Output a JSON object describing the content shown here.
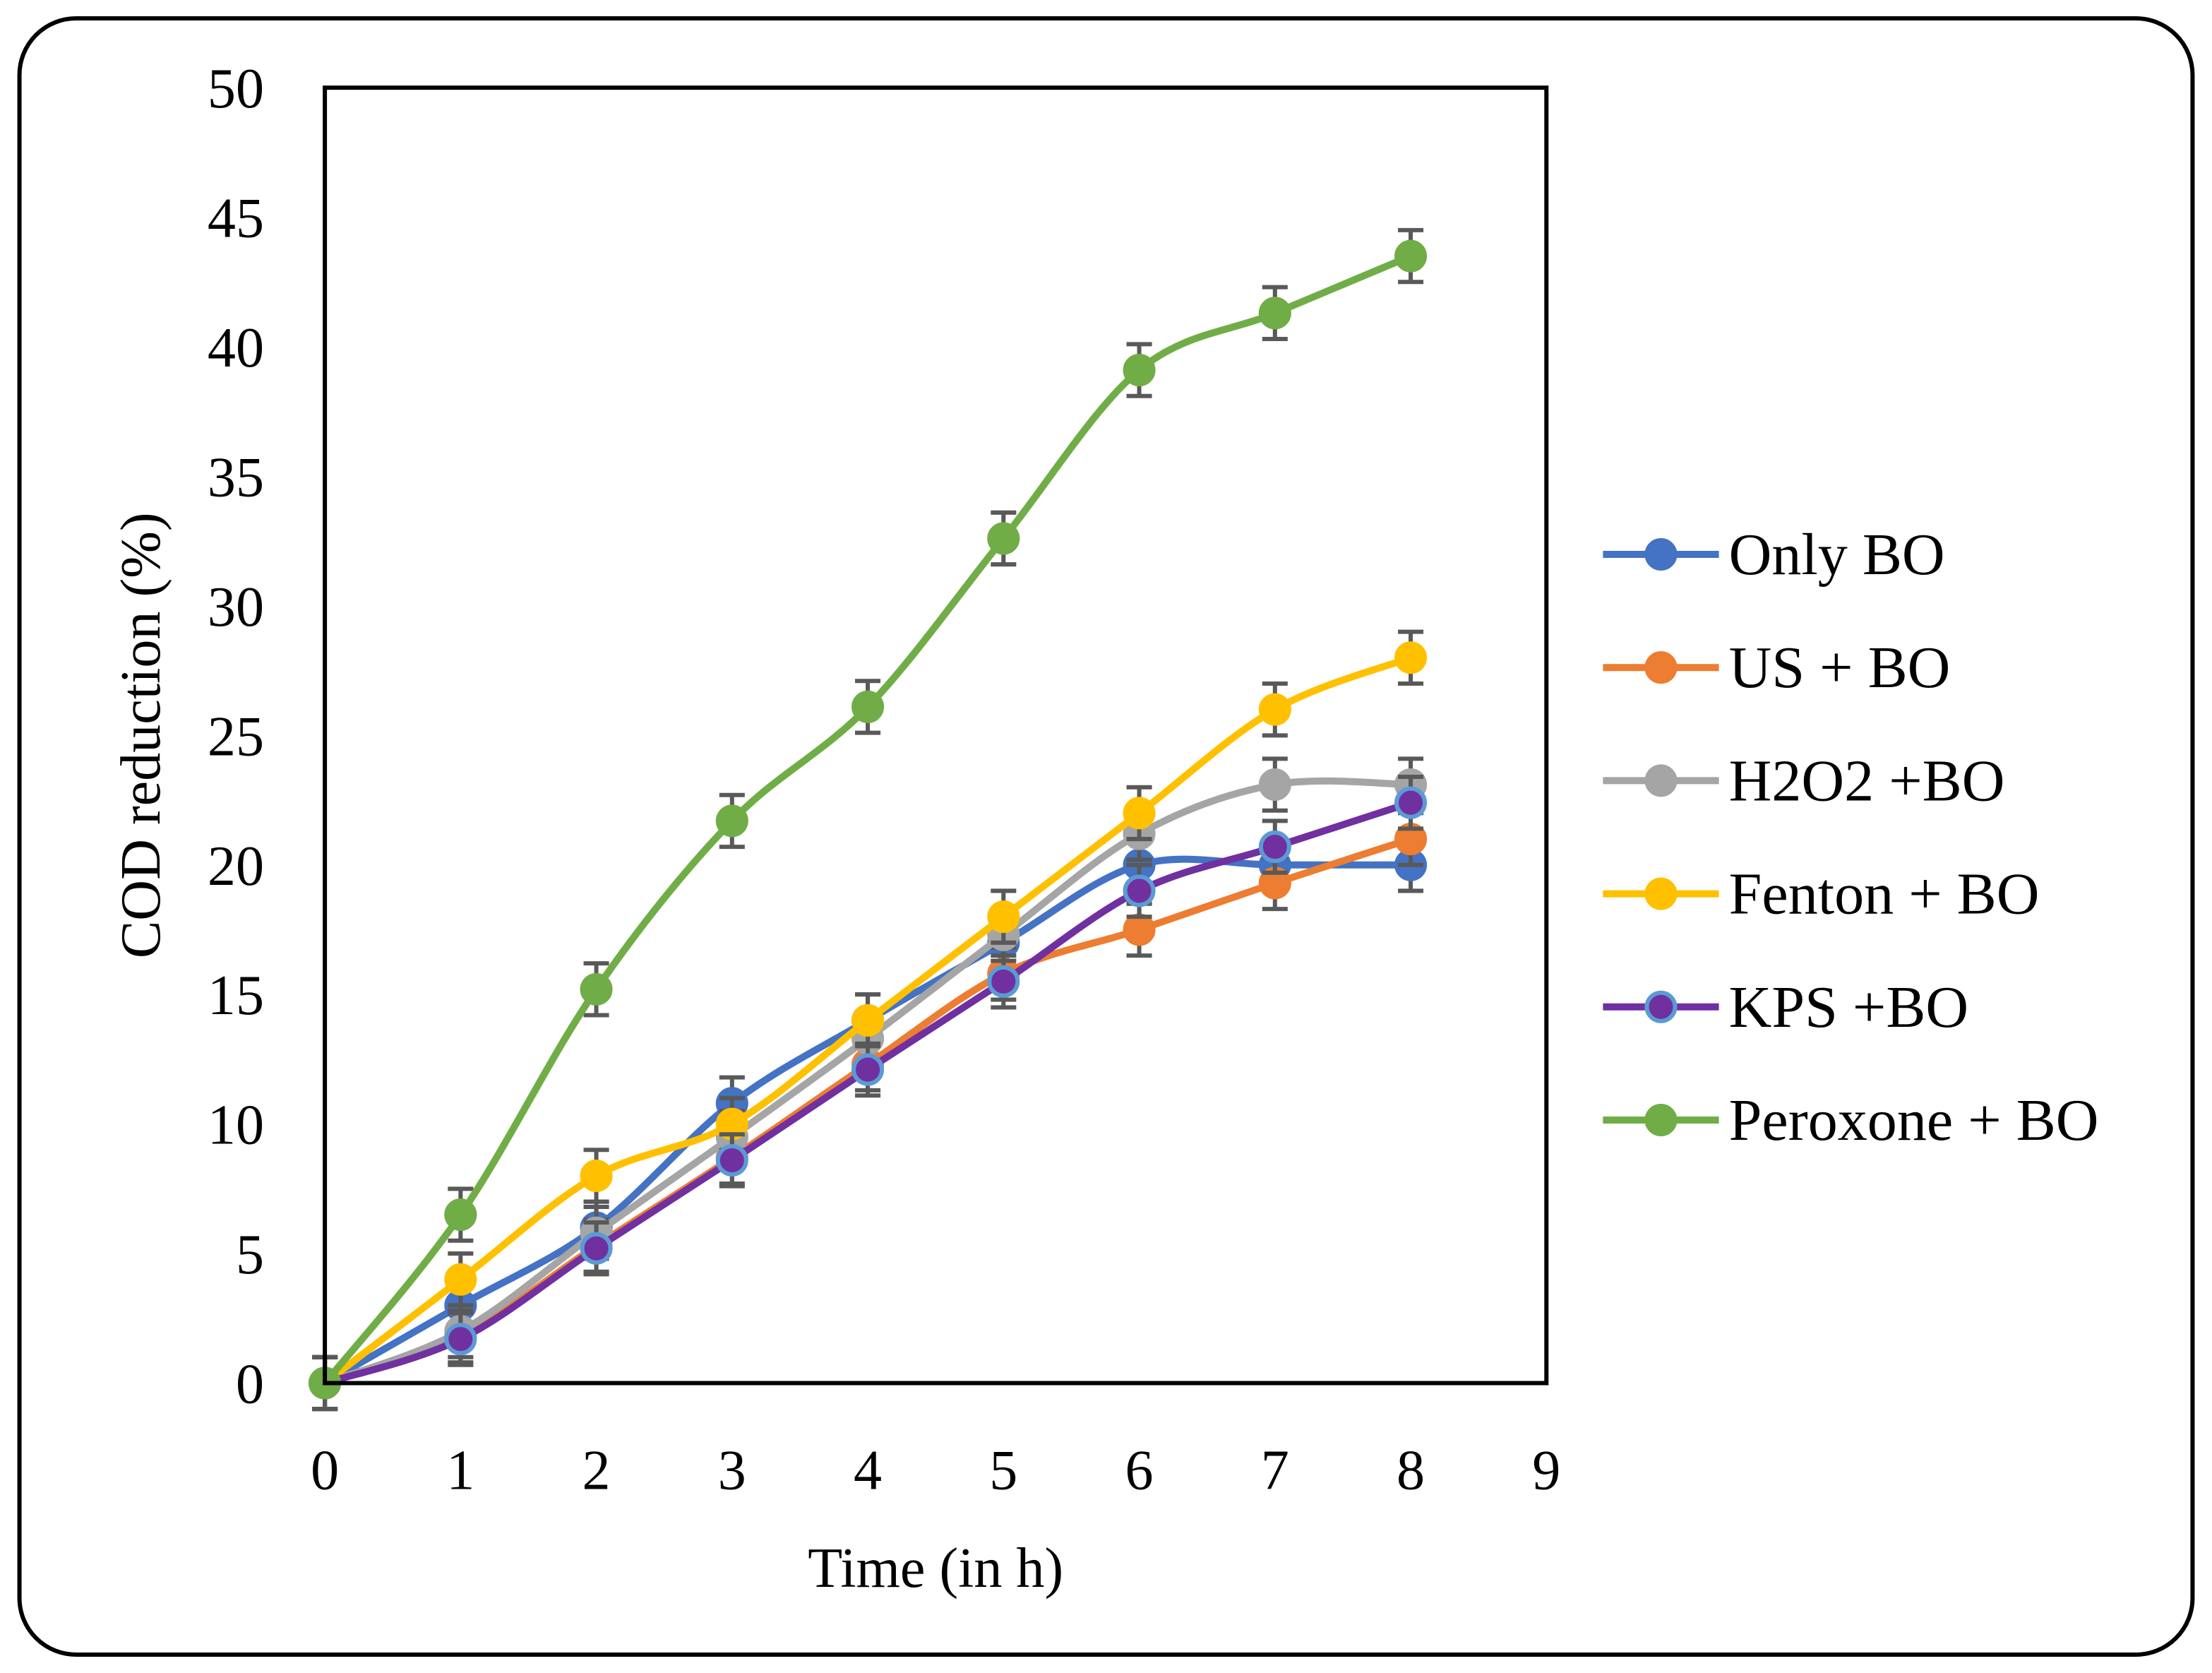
{
  "chart_data": {
    "type": "line",
    "title": "",
    "xlabel": "Time (in h)",
    "ylabel": "COD reduction (%)",
    "xlim": [
      0,
      9
    ],
    "ylim": [
      0,
      50
    ],
    "xticks": [
      "0",
      "1",
      "2",
      "3",
      "4",
      "5",
      "6",
      "7",
      "8",
      "9"
    ],
    "yticks": [
      "0",
      "5",
      "10",
      "15",
      "20",
      "25",
      "30",
      "35",
      "40",
      "45",
      "50"
    ],
    "grid": false,
    "legend_position": "right",
    "x": [
      0,
      1,
      2,
      3,
      4,
      5,
      6,
      7,
      8
    ],
    "error": 1,
    "series": [
      {
        "name": "Only BO",
        "color": "#4472C4",
        "values": [
          0,
          3,
          6,
          10.8,
          14,
          17,
          20,
          20,
          20
        ]
      },
      {
        "name": "US + BO",
        "color": "#ED7D31",
        "values": [
          0,
          1.8,
          5.3,
          8.7,
          12.3,
          15.8,
          17.5,
          19.3,
          21
        ]
      },
      {
        "name": "H2O2 +BO",
        "color": "#A5A5A5",
        "values": [
          0,
          2,
          5.8,
          9.5,
          13.3,
          17.3,
          21.2,
          23.1,
          23.1
        ]
      },
      {
        "name": "Fenton + BO",
        "color": "#FFC000",
        "values": [
          0,
          4,
          8,
          10,
          14,
          18,
          22,
          26,
          28
        ]
      },
      {
        "name": "KPS +BO",
        "color": "#7030A0",
        "marker_edge": "#5B9BD5",
        "values": [
          0,
          1.7,
          5.2,
          8.6,
          12.1,
          15.5,
          19,
          20.7,
          22.4
        ]
      },
      {
        "name": "Peroxone + BO",
        "color": "#70AD47",
        "values": [
          0,
          6.5,
          15.2,
          21.7,
          26.1,
          32.6,
          39.1,
          41.3,
          43.5
        ]
      }
    ]
  }
}
